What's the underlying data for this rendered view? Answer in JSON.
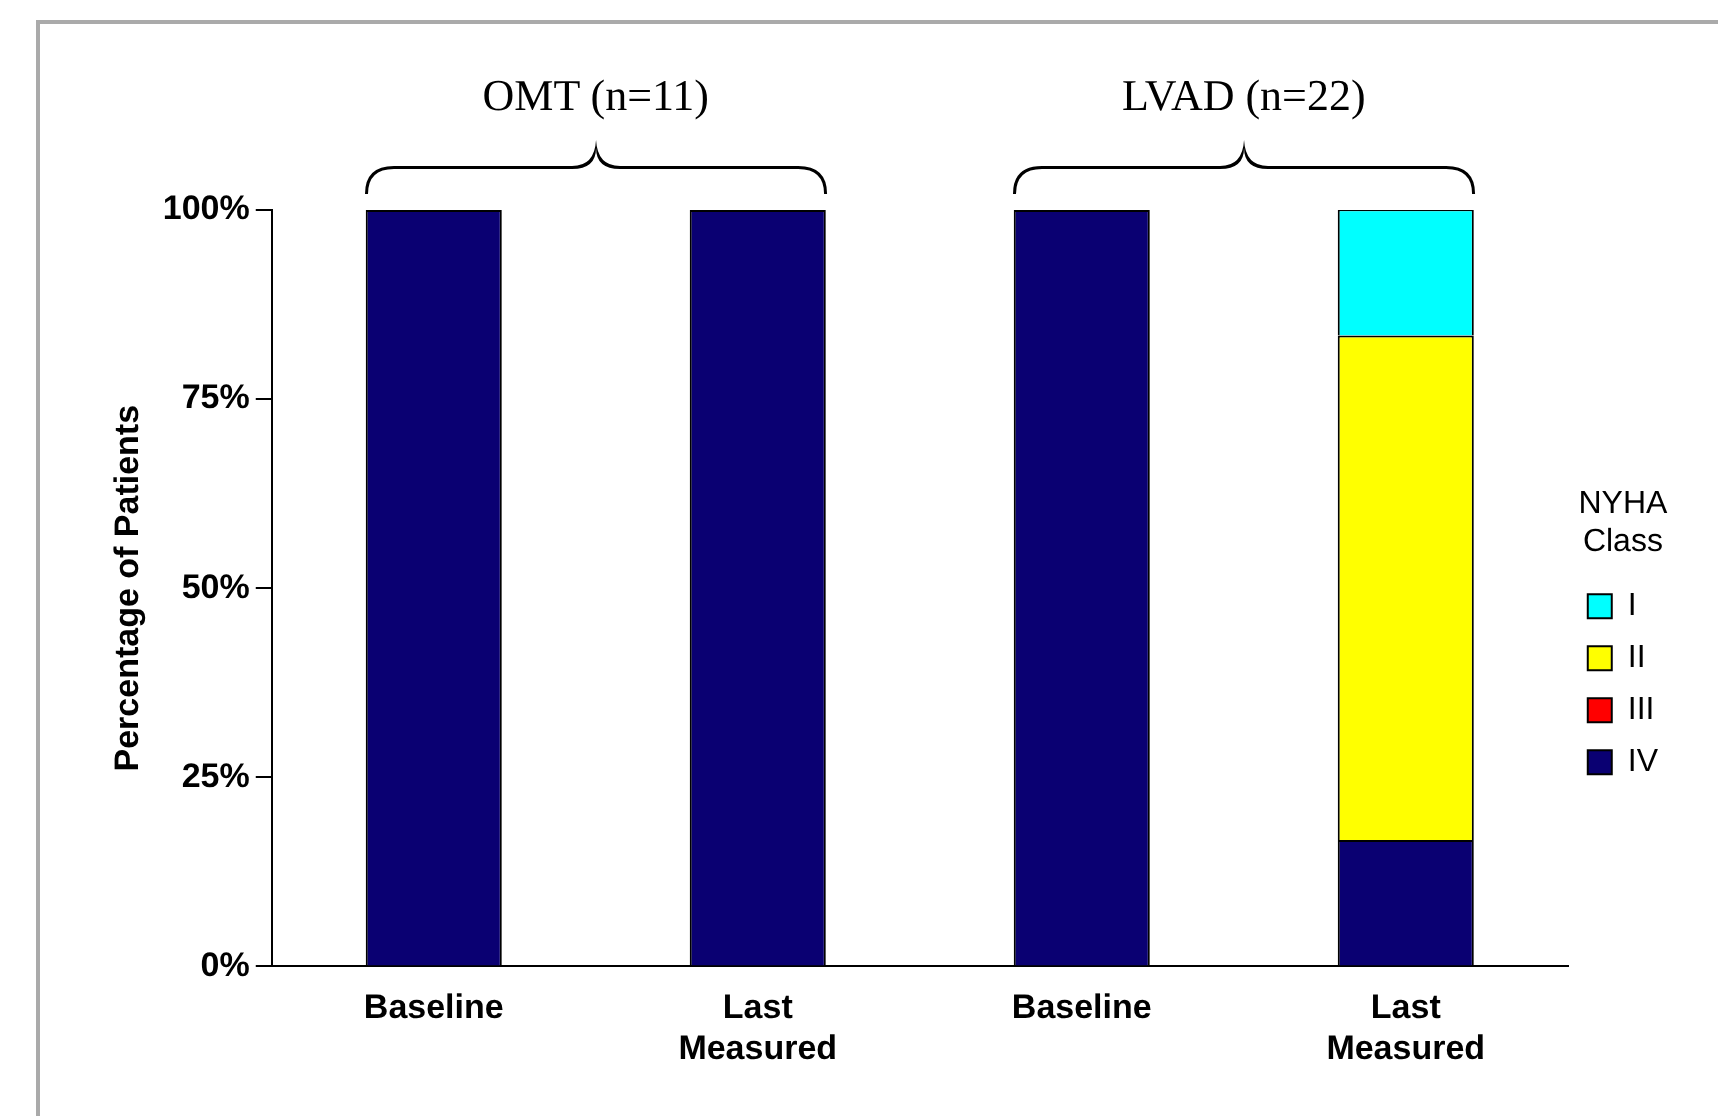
{
  "chart_data": {
    "type": "bar",
    "stacked": true,
    "ylabel": "Percentage of Patients",
    "legend_title": "NYHA Class",
    "legend": "right",
    "categories": [
      "Baseline",
      "Last Measured",
      "Baseline",
      "Last Measured"
    ],
    "ylim": [
      0,
      100
    ],
    "yticks": [
      {
        "value": 0,
        "label": "0%"
      },
      {
        "value": 25,
        "label": "25%"
      },
      {
        "value": 50,
        "label": "50%"
      },
      {
        "value": 75,
        "label": "75%"
      },
      {
        "value": 100,
        "label": "100%"
      }
    ],
    "series": [
      {
        "name": "IV",
        "color": "#0a0072",
        "values": [
          100,
          100,
          100,
          16.7
        ]
      },
      {
        "name": "III",
        "color": "#ff0000",
        "values": [
          0,
          0,
          0,
          0
        ]
      },
      {
        "name": "II",
        "color": "#ffff00",
        "values": [
          0,
          0,
          0,
          66.7
        ]
      },
      {
        "name": "I",
        "color": "#00ffff",
        "values": [
          0,
          0,
          0,
          16.7
        ]
      }
    ],
    "annotations": [
      "OMT (n=11)",
      "LVAD (n=22)"
    ]
  }
}
